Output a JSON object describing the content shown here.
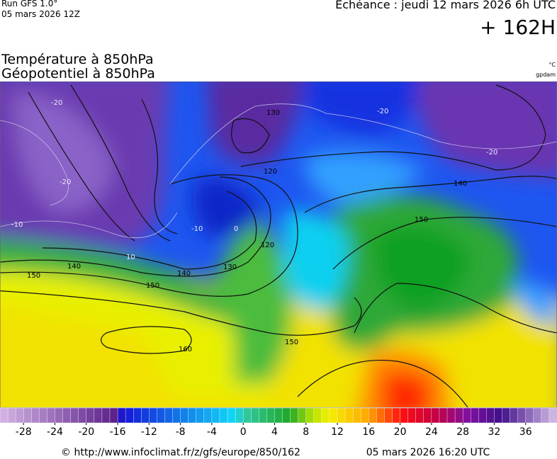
{
  "header": {
    "run": "Run GFS 1.0°",
    "run_date": "05 mars 2026 12Z",
    "valid": "Echéance : jeudi 12 mars 2026 6h UTC",
    "lead": "+ 162H"
  },
  "titles": {
    "line1": "Température à 850hPa",
    "line2": "Géopotentiel à 850hPa",
    "unit1": "°C",
    "unit2": "gpdam"
  },
  "map": {
    "geopotential_labels": [
      "140",
      "150",
      "130",
      "120",
      "160",
      "140",
      "150",
      "150",
      "140",
      "150",
      "120",
      "130"
    ],
    "isotherm_labels": [
      "-20",
      "-20",
      "-20",
      "-10",
      "10",
      "-10",
      "0",
      "-20"
    ]
  },
  "colorbar": {
    "range": [
      -31,
      40
    ],
    "ticks": [
      -28,
      -24,
      -20,
      -16,
      -12,
      -8,
      -4,
      0,
      4,
      8,
      12,
      16,
      20,
      24,
      28,
      32,
      36
    ]
  },
  "footer": {
    "source": "© http://www.infoclimat.fr/z/gfs/europe/850/162",
    "generated": "05 mars 2026 16:20 UTC"
  }
}
